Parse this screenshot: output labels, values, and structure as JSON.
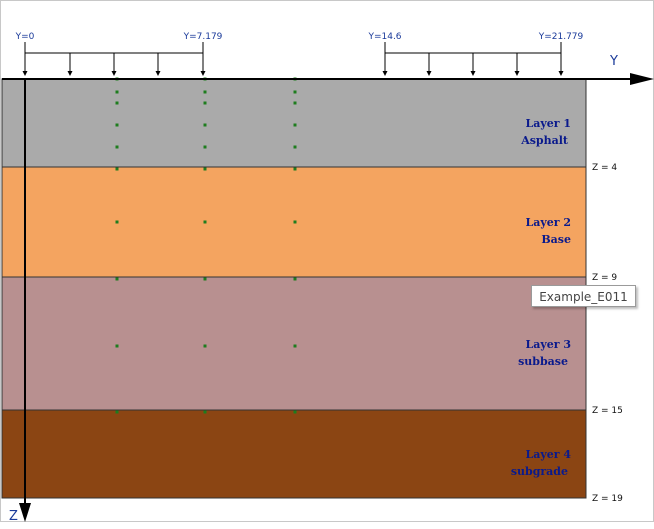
{
  "axes": {
    "y_name": "Y",
    "z_name": "Z"
  },
  "load_labels": [
    "Y=0",
    "Y=7.179",
    "Y=14.6",
    "Y=21.779"
  ],
  "layers": [
    {
      "name": "Layer 1",
      "material": "Asphalt",
      "depth_label": "Z = 4",
      "color": "#aaaaaa"
    },
    {
      "name": "Layer 2",
      "material": "Base",
      "depth_label": "Z = 9",
      "color": "#f4a460"
    },
    {
      "name": "Layer 3",
      "material": "subbase",
      "depth_label": "Z = 15",
      "color": "#b89090"
    },
    {
      "name": "Layer 4",
      "material": "subgrade",
      "depth_label": "Z = 19",
      "color": "#8b4513"
    }
  ],
  "tooltip": "Example_E011",
  "evaluation_point_color": "#1e7d1e"
}
